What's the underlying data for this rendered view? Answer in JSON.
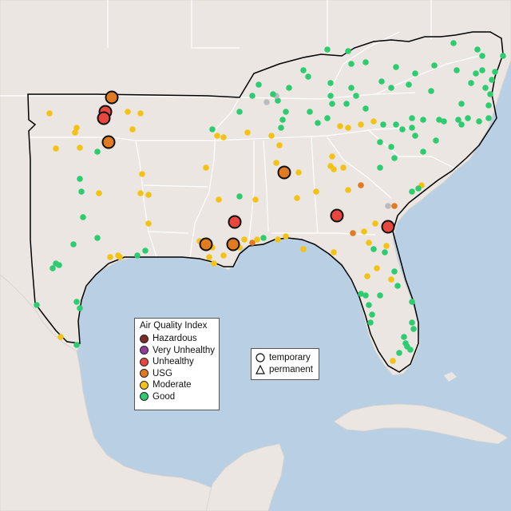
{
  "map": {
    "colors": {
      "ocean": "#b9d0e4",
      "land": "#ebe6e1",
      "state_border": "#ffffff",
      "region_outline": "#000000"
    }
  },
  "aqi_legend": {
    "title": "Air Quality Index",
    "categories": [
      {
        "label": "Hazardous",
        "color": "#7e2a2a"
      },
      {
        "label": "Very Unhealthy",
        "color": "#8f3f97"
      },
      {
        "label": "Unhealthy",
        "color": "#e8473f"
      },
      {
        "label": "USG",
        "color": "#e07b24"
      },
      {
        "label": "Moderate",
        "color": "#f2c216"
      },
      {
        "label": "Good",
        "color": "#2ecc71"
      }
    ]
  },
  "monitor_legend": {
    "items": [
      {
        "label": "temporary",
        "shape": "circle"
      },
      {
        "label": "permanent",
        "shape": "triangle"
      }
    ]
  }
}
